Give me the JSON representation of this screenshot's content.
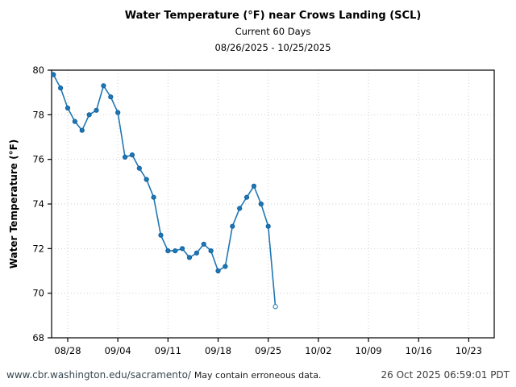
{
  "header": {
    "title": "Water Temperature (°F) near Crows Landing (SCL)",
    "subtitle1": "Current 60 Days",
    "subtitle2": "08/26/2025 - 10/25/2025"
  },
  "chart_data": {
    "type": "line",
    "title": "Water Temperature (°F) near Crows Landing (SCL)",
    "xlabel": "",
    "ylabel": "Water Temperature (°F)",
    "ylim": [
      68,
      80
    ],
    "y_ticks": [
      80,
      78,
      76,
      74,
      72,
      70,
      68
    ],
    "x_tick_labels": [
      "08/28",
      "09/04",
      "09/11",
      "09/18",
      "09/25",
      "10/02",
      "10/09",
      "10/16",
      "10/23"
    ],
    "x_range_days": [
      "08/26/2025",
      "10/25/2025"
    ],
    "grid": true,
    "legend_position": "none",
    "line_color": "#1f77b4",
    "marker": "circle",
    "last_point_open_marker": true,
    "series": [
      {
        "name": "Water Temperature (°F)",
        "dates": [
          "08/26",
          "08/27",
          "08/28",
          "08/29",
          "08/30",
          "08/31",
          "09/01",
          "09/02",
          "09/03",
          "09/04",
          "09/05",
          "09/06",
          "09/07",
          "09/08",
          "09/09",
          "09/10",
          "09/11",
          "09/12",
          "09/13",
          "09/14",
          "09/15",
          "09/16",
          "09/17",
          "09/18",
          "09/19",
          "09/20",
          "09/21",
          "09/22",
          "09/23",
          "09/24",
          "09/25",
          "09/26"
        ],
        "values": [
          79.8,
          79.2,
          78.3,
          77.7,
          77.3,
          78.0,
          78.2,
          79.3,
          78.8,
          78.1,
          76.1,
          76.2,
          75.6,
          75.1,
          74.3,
          72.6,
          71.9,
          71.9,
          72.0,
          71.6,
          71.8,
          72.2,
          71.9,
          71.0,
          71.2,
          73.0,
          73.8,
          74.3,
          74.8,
          74.0,
          73.0,
          69.4
        ]
      }
    ]
  },
  "footer": {
    "url": "www.cbr.washington.edu/sacramento/",
    "warning": "May contain erroneous data.",
    "timestamp": "26 Oct 2025 06:59:01 PDT"
  },
  "colors": {
    "line": "#1f77b4",
    "grid": "#c8c8c8",
    "frame": "#000000",
    "url_text": "#37474f",
    "timestamp_text": "#3c3c3c"
  }
}
